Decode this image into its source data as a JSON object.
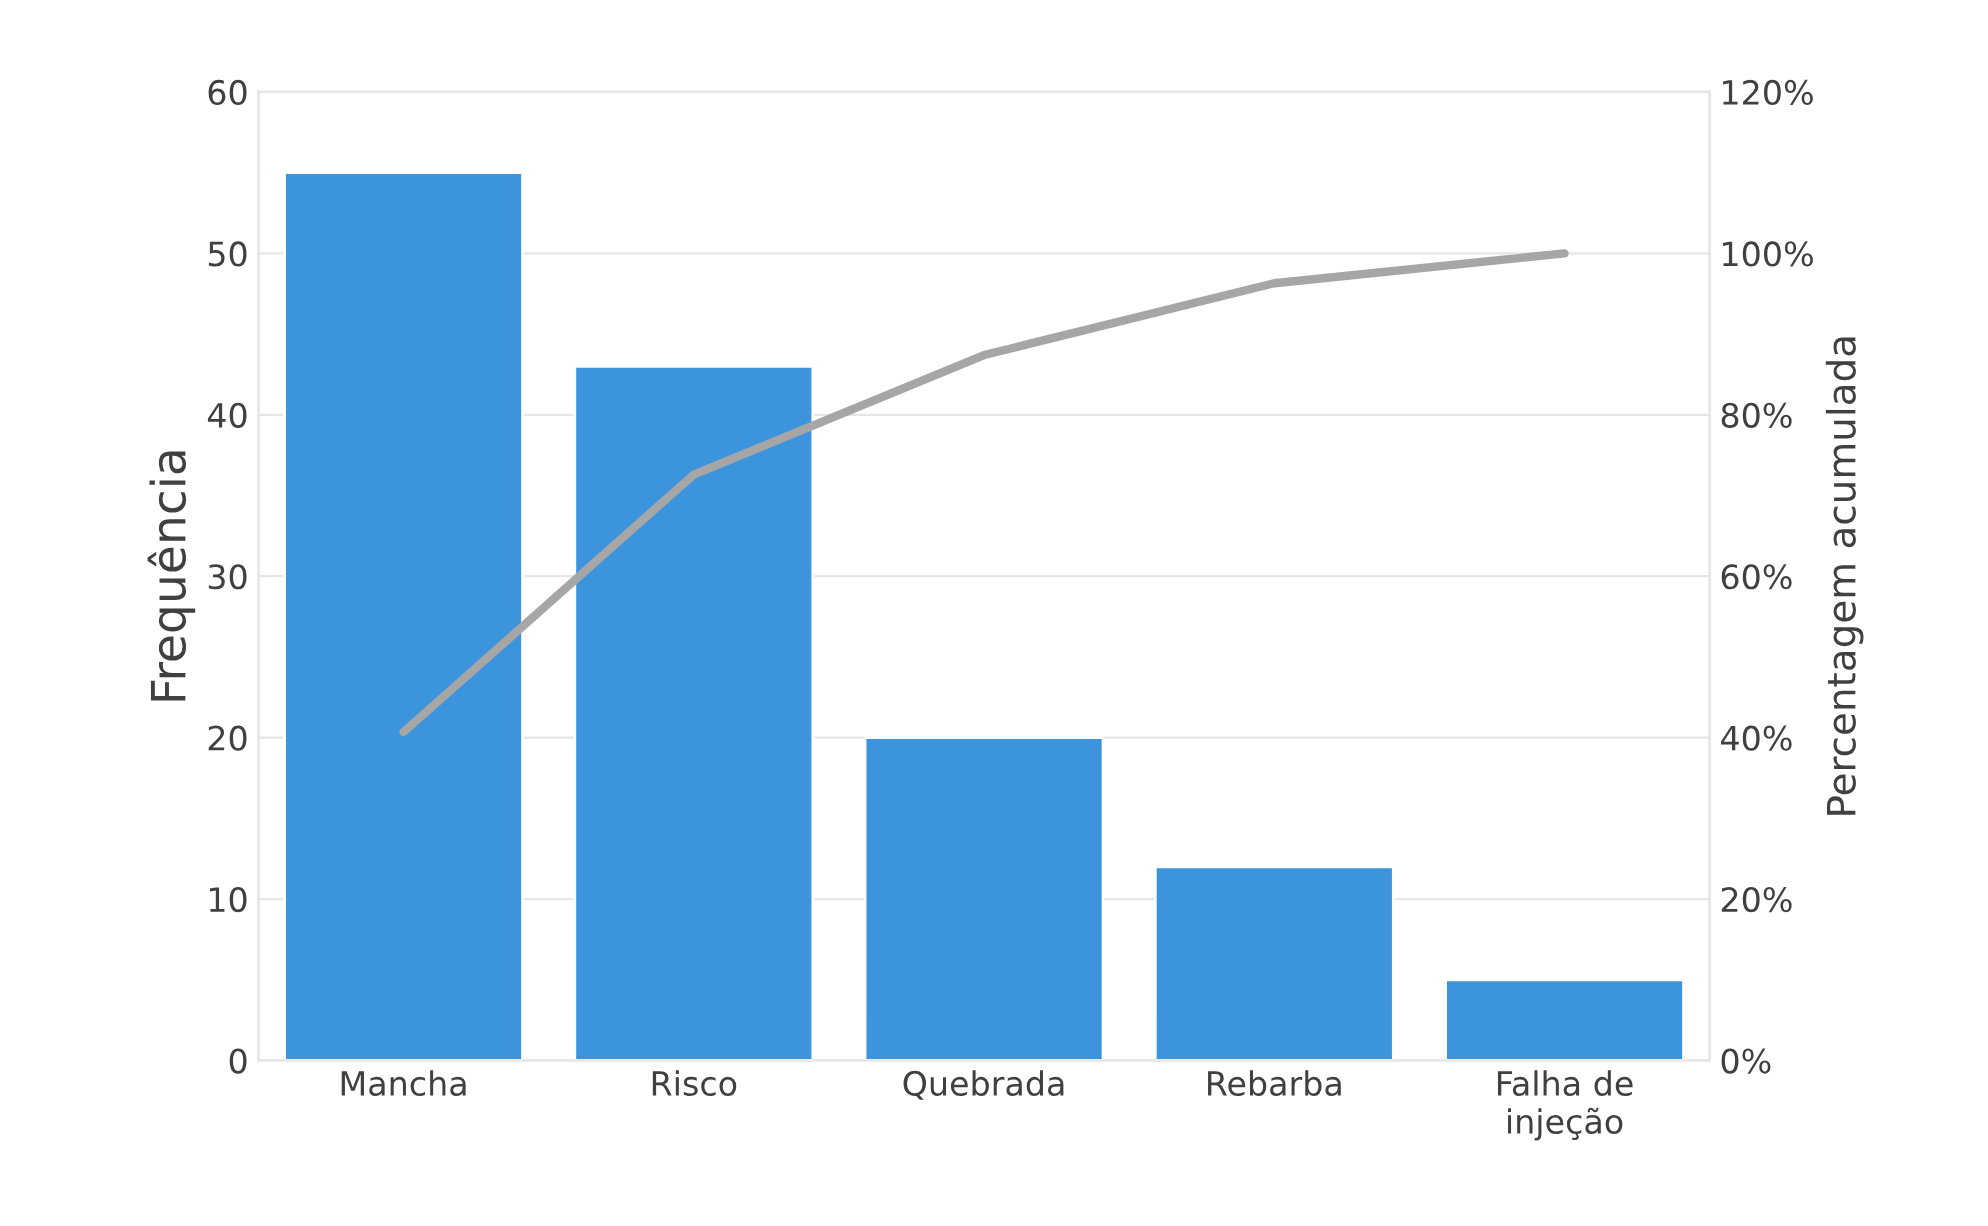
{
  "chart_data": {
    "type": "bar",
    "ylabel": "Frequência",
    "y2label": "Percentagem acumulada",
    "categories": [
      "Mancha",
      "Risco",
      "Quebrada",
      "Rebarba",
      "Falha de\ninjeção"
    ],
    "series": [
      {
        "color": "#3c94dc",
        "values": [
          55,
          43,
          20,
          12,
          5
        ]
      },
      {
        "type": "line",
        "axis": "y2",
        "color": "#a6a6a6",
        "values": [
          40.7,
          72.6,
          87.4,
          96.3,
          100
        ]
      }
    ],
    "ylim": [
      0,
      60
    ],
    "yticks": [
      0,
      10,
      20,
      30,
      40,
      50,
      60
    ],
    "y2lim": [
      0,
      120
    ],
    "y2ticks": [
      {
        "value": 0,
        "label": "0%"
      },
      {
        "value": 20,
        "label": "20%"
      },
      {
        "value": 40,
        "label": "40%"
      },
      {
        "value": 60,
        "label": "60%"
      },
      {
        "value": 80,
        "label": "80%"
      },
      {
        "value": 100,
        "label": "100%"
      },
      {
        "value": 120,
        "label": "120%"
      }
    ],
    "grid": "y",
    "marker": "none",
    "line_style": "solid"
  }
}
